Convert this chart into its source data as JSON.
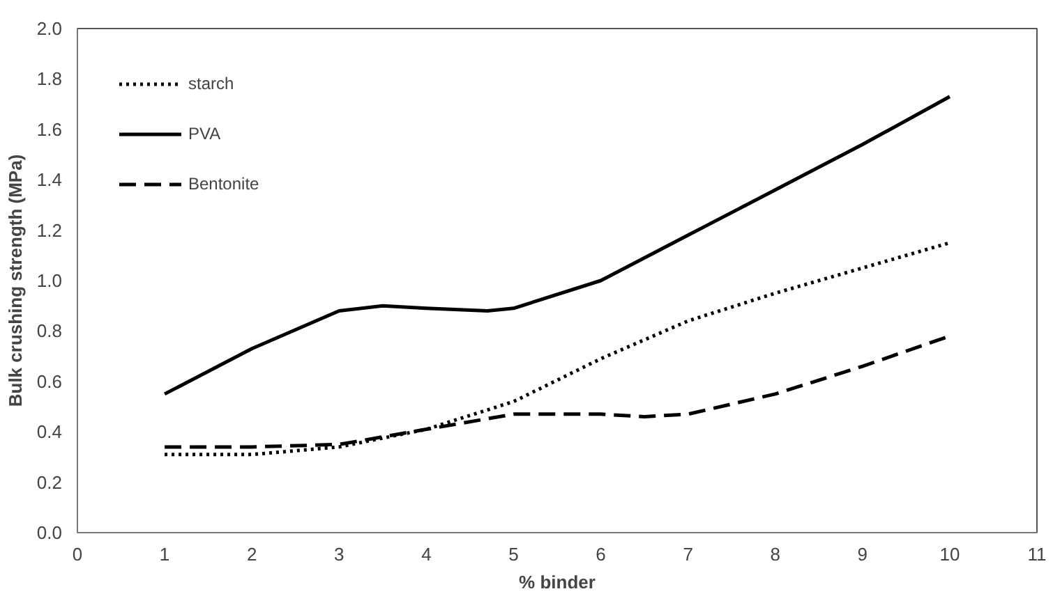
{
  "chart_data": {
    "type": "line",
    "xlabel": "% binder",
    "ylabel": "Bulk crushing strength (MPa)",
    "xlim": [
      0,
      11
    ],
    "xticks": [
      0,
      1,
      2,
      3,
      4,
      5,
      6,
      7,
      8,
      9,
      10,
      11
    ],
    "ylim": [
      0,
      2.0
    ],
    "yticks": [
      {
        "value": 0,
        "label": "0.0"
      },
      {
        "value": 0.2,
        "label": "0.2"
      },
      {
        "value": 0.4,
        "label": "0.4"
      },
      {
        "value": 0.6,
        "label": "0.6"
      },
      {
        "value": 0.8,
        "label": "0.8"
      },
      {
        "value": 1.0,
        "label": "1.0"
      },
      {
        "value": 1.2,
        "label": "1.2"
      },
      {
        "value": 1.4,
        "label": "1.4"
      },
      {
        "value": 1.6,
        "label": "1.6"
      },
      {
        "value": 1.8,
        "label": "1.8"
      },
      {
        "value": 2.0,
        "label": "2.0"
      }
    ],
    "grid": false,
    "legend": "top left",
    "series": [
      {
        "name": "starch",
        "color": "#000000",
        "line_style": "dotted",
        "x": [
          1,
          2,
          3,
          4,
          5,
          6,
          7,
          8,
          9,
          10
        ],
        "values": [
          0.31,
          0.31,
          0.34,
          0.41,
          0.52,
          0.69,
          0.84,
          0.95,
          1.05,
          1.15
        ]
      },
      {
        "name": "PVA",
        "color": "#000000",
        "line_style": "solid",
        "x": [
          1,
          2,
          3,
          3.5,
          4,
          4.7,
          5,
          6,
          7,
          8,
          9,
          10
        ],
        "values": [
          0.55,
          0.73,
          0.88,
          0.9,
          0.89,
          0.88,
          0.89,
          1.0,
          1.18,
          1.36,
          1.54,
          1.73
        ]
      },
      {
        "name": "Bentonite",
        "color": "#000000",
        "line_style": "dashed",
        "x": [
          1,
          2,
          3,
          4,
          5,
          6,
          6.5,
          7,
          8,
          9,
          10
        ],
        "values": [
          0.34,
          0.34,
          0.35,
          0.41,
          0.47,
          0.47,
          0.46,
          0.47,
          0.55,
          0.66,
          0.78
        ]
      }
    ]
  }
}
